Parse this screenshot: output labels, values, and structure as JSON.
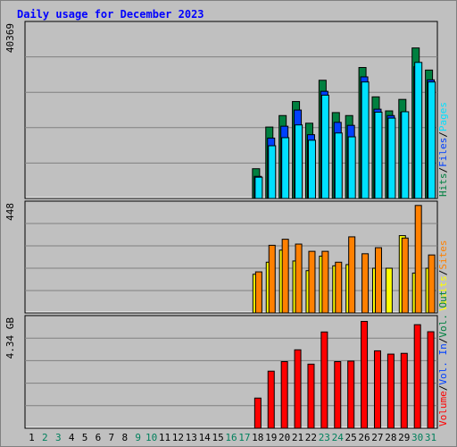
{
  "title": "Daily usage for December 2023",
  "colors": {
    "background": "#c0c0c0",
    "hits": "#008040",
    "files": "#0040ff",
    "pages": "#00e0ff",
    "visits": "#ffff00",
    "sites": "#ff8000",
    "volume": "#ff0000",
    "vol_in": "#0040ff",
    "vol_out": "#008040",
    "weekend_day": "#00805c",
    "weekday": "#000000"
  },
  "chart_data": [
    {
      "type": "bar",
      "panel": "hits_files_pages",
      "ymax_label": "40369",
      "legend": [
        "Hits",
        "Files",
        "Pages"
      ],
      "legend_separator": "/",
      "categories": [
        "1",
        "2",
        "3",
        "4",
        "5",
        "6",
        "7",
        "8",
        "9",
        "10",
        "11",
        "12",
        "13",
        "14",
        "15",
        "16",
        "17",
        "18",
        "19",
        "20",
        "21",
        "22",
        "23",
        "24",
        "25",
        "26",
        "27",
        "28",
        "29",
        "30",
        "31"
      ],
      "ylim": [
        0,
        40369
      ],
      "grid": true,
      "series": [
        {
          "name": "Hits",
          "values": [
            0,
            0,
            0,
            0,
            0,
            0,
            0,
            0,
            0,
            0,
            0,
            0,
            0,
            0,
            0,
            0,
            0,
            7000,
            16800,
            19500,
            22800,
            17700,
            27800,
            20200,
            19500,
            30800,
            23900,
            20600,
            23300,
            35400,
            30200
          ]
        },
        {
          "name": "Files",
          "values": [
            0,
            0,
            0,
            0,
            0,
            0,
            0,
            0,
            0,
            0,
            0,
            0,
            0,
            0,
            0,
            0,
            0,
            5200,
            14200,
            17000,
            20800,
            15000,
            25200,
            17900,
            17200,
            28600,
            21000,
            19500,
            20300,
            31000,
            27900
          ]
        },
        {
          "name": "Pages",
          "values": [
            0,
            0,
            0,
            0,
            0,
            0,
            0,
            0,
            0,
            0,
            0,
            0,
            0,
            0,
            0,
            0,
            0,
            5000,
            12400,
            14300,
            17300,
            13700,
            24300,
            15400,
            14500,
            27400,
            20300,
            18900,
            20400,
            32000,
            27400
          ]
        }
      ]
    },
    {
      "type": "bar",
      "panel": "visits_sites",
      "ymax_label": "448",
      "legend": [
        "Visits",
        "Sites"
      ],
      "legend_separator": "/",
      "categories": [
        "1",
        "2",
        "3",
        "4",
        "5",
        "6",
        "7",
        "8",
        "9",
        "10",
        "11",
        "12",
        "13",
        "14",
        "15",
        "16",
        "17",
        "18",
        "19",
        "20",
        "21",
        "22",
        "23",
        "24",
        "25",
        "26",
        "27",
        "28",
        "29",
        "30",
        "31"
      ],
      "ylim": [
        0,
        448
      ],
      "grid": true,
      "series": [
        {
          "name": "Visits",
          "values": [
            0,
            0,
            0,
            0,
            0,
            0,
            0,
            0,
            0,
            0,
            0,
            0,
            0,
            0,
            0,
            0,
            0,
            160,
            210,
            260,
            215,
            175,
            235,
            195,
            200,
            0,
            185,
            185,
            320,
            165,
            185
          ]
        },
        {
          "name": "Sites",
          "values": [
            0,
            0,
            0,
            0,
            0,
            0,
            0,
            0,
            0,
            0,
            0,
            0,
            0,
            0,
            0,
            0,
            0,
            170,
            280,
            305,
            285,
            255,
            255,
            210,
            315,
            245,
            270,
            0,
            310,
            445,
            240
          ]
        }
      ]
    },
    {
      "type": "bar",
      "panel": "volume",
      "ymax_label": "4.34 GB",
      "legend": [
        "Volume",
        "Vol. In",
        "Vol. Out"
      ],
      "legend_separator": "/",
      "categories": [
        "1",
        "2",
        "3",
        "4",
        "5",
        "6",
        "7",
        "8",
        "9",
        "10",
        "11",
        "12",
        "13",
        "14",
        "15",
        "16",
        "17",
        "18",
        "19",
        "20",
        "21",
        "22",
        "23",
        "24",
        "25",
        "26",
        "27",
        "28",
        "29",
        "30",
        "31"
      ],
      "ylim": [
        0,
        4.34
      ],
      "y_unit": "GB",
      "grid": true,
      "series": [
        {
          "name": "Volume",
          "values": [
            0,
            0,
            0,
            0,
            0,
            0,
            0,
            0,
            0,
            0,
            0,
            0,
            0,
            0,
            0,
            0,
            0,
            1.2,
            2.27,
            2.65,
            3.12,
            2.55,
            3.83,
            2.65,
            2.67,
            4.25,
            3.08,
            2.95,
            2.98,
            4.12,
            3.84
          ]
        }
      ]
    }
  ],
  "x_axis": {
    "day_labels": [
      "1",
      "2",
      "3",
      "4",
      "5",
      "6",
      "7",
      "8",
      "9",
      "10",
      "11",
      "12",
      "13",
      "14",
      "15",
      "16",
      "17",
      "18",
      "19",
      "20",
      "21",
      "22",
      "23",
      "24",
      "25",
      "26",
      "27",
      "28",
      "29",
      "30",
      "31"
    ],
    "weekend_days": [
      2,
      3,
      9,
      10,
      16,
      17,
      23,
      24,
      30,
      31
    ]
  }
}
